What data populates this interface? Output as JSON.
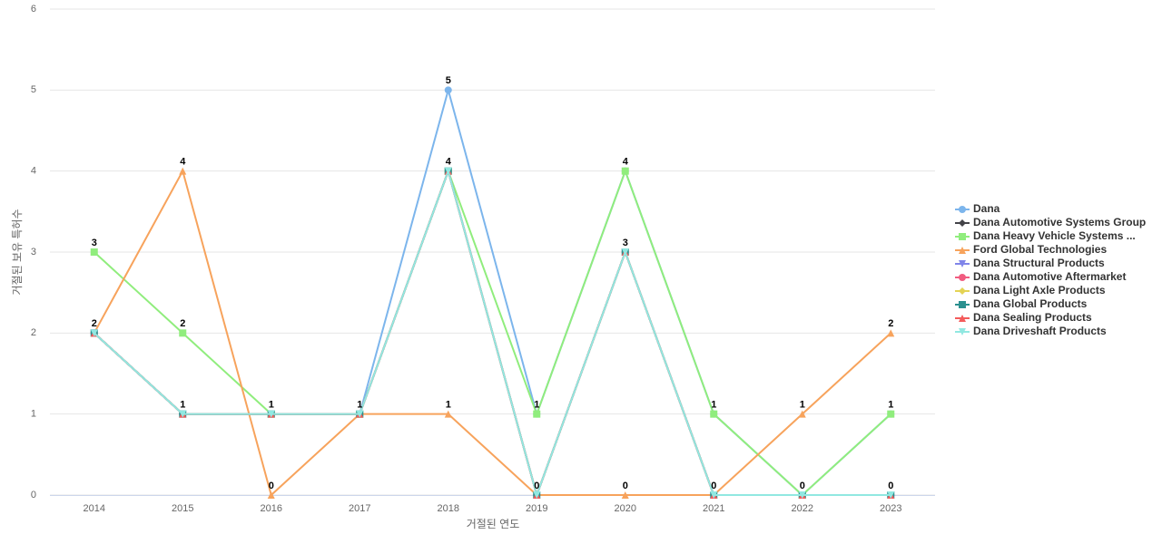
{
  "chart_data": {
    "type": "line",
    "x_label": "거절된 연도",
    "y_label": "거절된 보유 특허수",
    "categories": [
      "2014",
      "2015",
      "2016",
      "2017",
      "2018",
      "2019",
      "2020",
      "2021",
      "2022",
      "2023"
    ],
    "ylim": [
      0,
      6
    ],
    "yticks": [
      0,
      1,
      2,
      3,
      4,
      5,
      6
    ],
    "grid": true,
    "legend": "right",
    "series": [
      {
        "name": "Dana",
        "color": "#7cb5ec",
        "marker": "circle",
        "values": [
          2,
          1,
          1,
          1,
          5,
          1,
          4,
          1,
          0,
          1
        ]
      },
      {
        "name": "Dana Automotive Systems Group",
        "color": "#434348",
        "marker": "diamond",
        "values": [
          2,
          1,
          1,
          1,
          4,
          0,
          3,
          0,
          0,
          0
        ]
      },
      {
        "name": "Dana Heavy Vehicle Systems ...",
        "color": "#90ed7d",
        "marker": "square",
        "values": [
          3,
          2,
          1,
          1,
          4,
          1,
          4,
          1,
          0,
          1
        ]
      },
      {
        "name": "Ford Global Technologies",
        "color": "#f7a35c",
        "marker": "triangle",
        "values": [
          2,
          4,
          0,
          1,
          1,
          0,
          0,
          0,
          1,
          2
        ]
      },
      {
        "name": "Dana Structural Products",
        "color": "#8085e9",
        "marker": "triangle-down",
        "values": [
          2,
          1,
          1,
          1,
          4,
          0,
          3,
          0,
          0,
          0
        ]
      },
      {
        "name": "Dana Automotive Aftermarket",
        "color": "#f15c80",
        "marker": "circle",
        "values": [
          2,
          1,
          1,
          1,
          4,
          0,
          3,
          0,
          0,
          0
        ]
      },
      {
        "name": "Dana Light Axle Products",
        "color": "#e4d354",
        "marker": "diamond",
        "values": [
          2,
          1,
          1,
          1,
          4,
          0,
          3,
          0,
          0,
          0
        ]
      },
      {
        "name": "Dana Global Products",
        "color": "#2b908f",
        "marker": "square",
        "values": [
          2,
          1,
          1,
          1,
          4,
          0,
          3,
          0,
          0,
          0
        ]
      },
      {
        "name": "Dana Sealing Products",
        "color": "#f45b5b",
        "marker": "triangle",
        "values": [
          2,
          1,
          1,
          1,
          4,
          0,
          3,
          0,
          0,
          0
        ]
      },
      {
        "name": "Dana Driveshaft Products",
        "color": "#91e8e1",
        "marker": "triangle-down",
        "values": [
          2,
          1,
          1,
          1,
          4,
          0,
          3,
          0,
          0,
          0
        ]
      }
    ]
  }
}
